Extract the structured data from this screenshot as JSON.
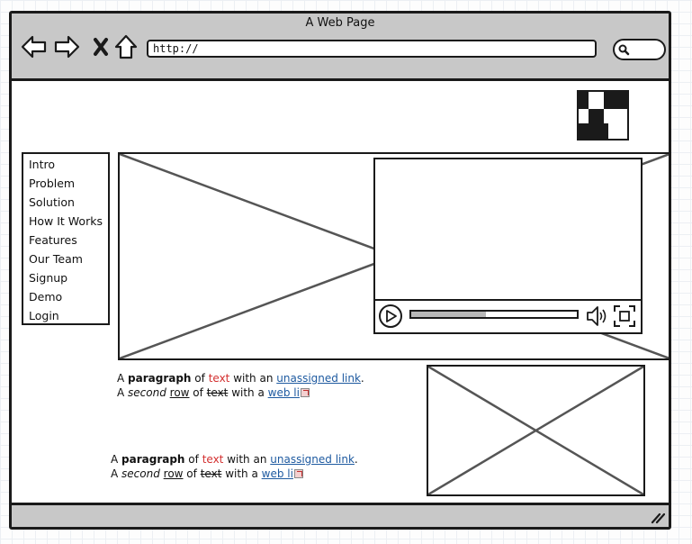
{
  "window": {
    "title": "A Web Page"
  },
  "toolbar": {
    "url": "http://",
    "icons": [
      "back-arrow-icon",
      "forward-arrow-icon",
      "close-x-icon",
      "home-icon",
      "search-icon"
    ]
  },
  "sidebar": {
    "items": [
      {
        "label": "Intro"
      },
      {
        "label": "Problem"
      },
      {
        "label": "Solution"
      },
      {
        "label": "How It Works"
      },
      {
        "label": "Features"
      },
      {
        "label": "Our Team"
      },
      {
        "label": "Signup"
      },
      {
        "label": "Demo"
      },
      {
        "label": "Login"
      }
    ]
  },
  "video": {
    "progress": 0.45
  },
  "paragraph_1": {
    "line1": {
      "a": "A ",
      "bold": "paragraph",
      "of": " of ",
      "red": "text",
      "with": " with an ",
      "link": "unassigned link",
      "end": "."
    },
    "line2": {
      "a": "A ",
      "italic": "second",
      "sp": " ",
      "underline": "row",
      "of": " of ",
      "strike": "text",
      "with": " with a ",
      "link": "web li"
    }
  },
  "paragraph_2": {
    "line1": {
      "a": "A ",
      "bold": "paragraph",
      "of": " of ",
      "red": "text",
      "with": " with an ",
      "link": "unassigned link",
      "end": "."
    },
    "line2": {
      "a": "A ",
      "italic": "second",
      "sp": " ",
      "underline": "row",
      "of": " of ",
      "strike": "text",
      "with": " with a ",
      "link": "web li"
    }
  },
  "colors": {
    "chrome_bg": "#c8c8c8",
    "outline": "#1a1a1a",
    "link": "#1e5aa0",
    "red_text": "#d32f2f",
    "progress_fill": "#b8b8b8"
  }
}
